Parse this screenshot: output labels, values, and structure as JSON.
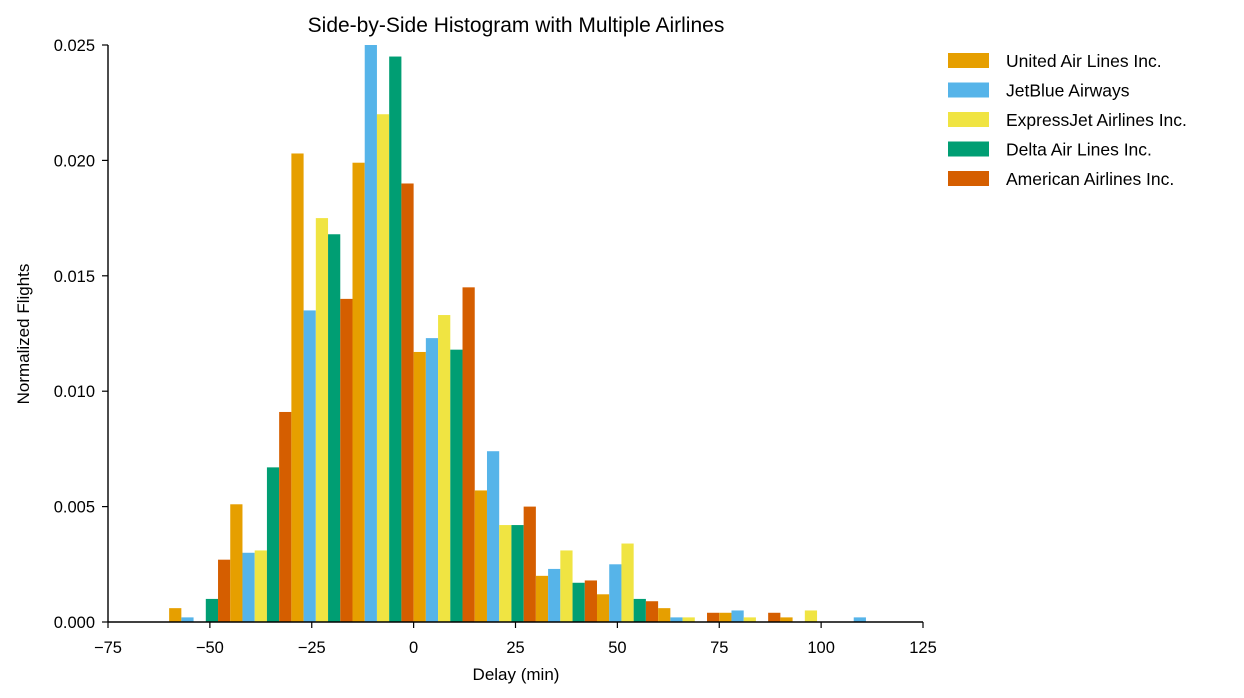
{
  "chart_data": {
    "type": "bar",
    "title": "Side-by-Side Histogram with Multiple Airlines",
    "xlabel": "Delay (min)",
    "ylabel": "Normalized Flights",
    "xlim": [
      -75,
      125
    ],
    "ylim": [
      0,
      0.025
    ],
    "x_ticks": [
      -75,
      -50,
      -25,
      0,
      25,
      50,
      75,
      100,
      125
    ],
    "x_tick_labels": [
      "−75",
      "−50",
      "−25",
      "0",
      "25",
      "50",
      "75",
      "100",
      "125"
    ],
    "y_ticks": [
      0,
      0.005,
      0.01,
      0.015,
      0.02,
      0.025
    ],
    "y_tick_labels": [
      "0.000",
      "0.005",
      "0.010",
      "0.015",
      "0.020",
      "0.025"
    ],
    "bin_edges": [
      -60,
      -45,
      -30,
      -15,
      0,
      15,
      30,
      45,
      60,
      75,
      90,
      105,
      120
    ],
    "legend_position": "upper right, outside plot",
    "grid": false,
    "series": [
      {
        "name": "United Air Lines Inc.",
        "color": "#E69F00",
        "values": [
          0.0006,
          0.0051,
          0.0203,
          0.0199,
          0.0117,
          0.0057,
          0.002,
          0.0012,
          0.0006,
          0.0004,
          0.0002,
          0.0
        ]
      },
      {
        "name": "JetBlue Airways",
        "color": "#56B4E9",
        "values": [
          0.0002,
          0.003,
          0.0135,
          0.025,
          0.0123,
          0.0074,
          0.0023,
          0.0025,
          0.0002,
          0.0005,
          0.0,
          0.0002
        ]
      },
      {
        "name": "ExpressJet Airlines Inc.",
        "color": "#F0E442",
        "values": [
          0.0,
          0.0031,
          0.0175,
          0.022,
          0.0133,
          0.0042,
          0.0031,
          0.0034,
          0.0002,
          0.0002,
          0.0005,
          0.0
        ]
      },
      {
        "name": "Delta Air Lines Inc.",
        "color": "#009E73",
        "values": [
          0.001,
          0.0067,
          0.0168,
          0.0245,
          0.0118,
          0.0042,
          0.0017,
          0.001,
          0.0,
          0.0,
          0.0,
          0.0
        ]
      },
      {
        "name": "American Airlines Inc.",
        "color": "#D55E00",
        "values": [
          0.0027,
          0.0091,
          0.014,
          0.019,
          0.0145,
          0.005,
          0.0018,
          0.0009,
          0.0004,
          0.0004,
          0.0,
          0.0
        ]
      }
    ]
  }
}
